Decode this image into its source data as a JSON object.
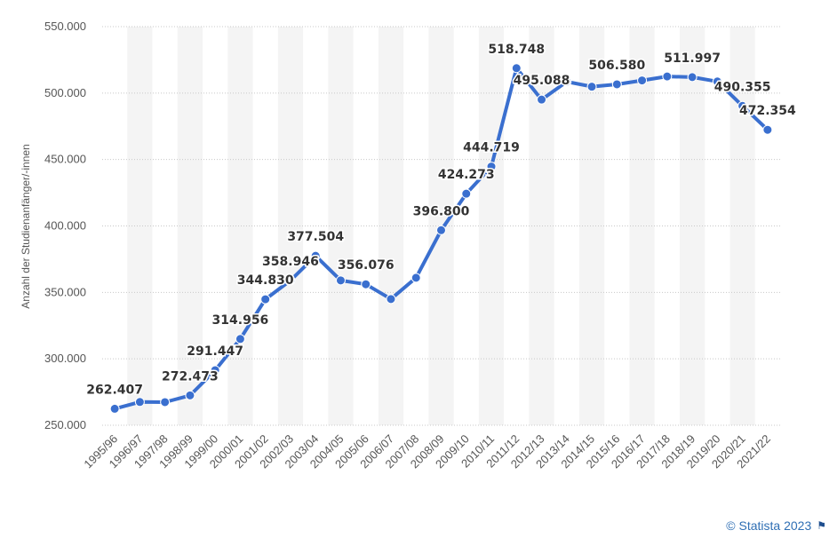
{
  "chart_data": {
    "type": "line",
    "ylabel": "Anzahl der Studienanfänger/-innen",
    "ylim": [
      250000,
      550000
    ],
    "yticks": [
      "250.000",
      "300.000",
      "350.000",
      "400.000",
      "450.000",
      "500.000",
      "550.000"
    ],
    "yticks_values": [
      250000,
      300000,
      350000,
      400000,
      450000,
      500000,
      550000
    ],
    "categories": [
      "1995/96",
      "1996/97",
      "1997/98",
      "1998/99",
      "1999/00",
      "2000/01",
      "2001/02",
      "2002/03",
      "2003/04",
      "2004/05",
      "2005/06",
      "2006/07",
      "2007/08",
      "2008/09",
      "2009/10",
      "2010/11",
      "2011/12",
      "2012/13",
      "2013/14",
      "2014/15",
      "2015/16",
      "2016/17",
      "2017/18",
      "2018/19",
      "2019/20",
      "2020/21",
      "2021/22"
    ],
    "values": [
      262407,
      267500,
      267400,
      272473,
      291447,
      314956,
      344830,
      358946,
      377504,
      359000,
      356076,
      345000,
      361000,
      396800,
      424273,
      444719,
      518748,
      495088,
      508600,
      504800,
      506580,
      509500,
      512500,
      511997,
      508700,
      490355,
      472354
    ],
    "data_labels": [
      "262.407",
      "",
      "",
      "272.473",
      "291.447",
      "314.956",
      "344.830",
      "358.946",
      "377.504",
      "",
      "356.076",
      "",
      "",
      "396.800",
      "424.273",
      "444.719",
      "518.748",
      "495.088",
      "",
      "",
      "506.580",
      "",
      "",
      "511.997",
      "",
      "490.355",
      "472.354"
    ],
    "grid": true,
    "line_color": "#3a6fcf",
    "band_color": "#f4f4f4"
  },
  "credit": {
    "text": "© Statista 2023",
    "icon": "flag-icon"
  }
}
